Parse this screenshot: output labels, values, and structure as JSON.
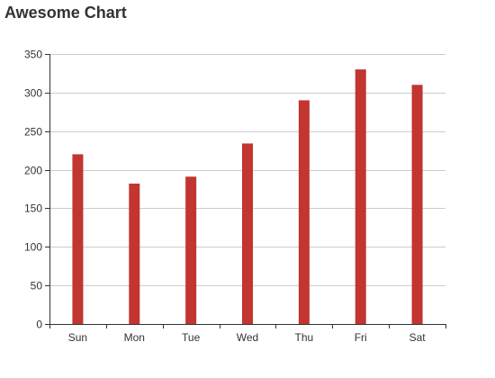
{
  "chart_data": {
    "type": "bar",
    "title": "Awesome Chart",
    "categories": [
      "Sun",
      "Mon",
      "Tue",
      "Wed",
      "Thu",
      "Fri",
      "Sat"
    ],
    "values": [
      220,
      182,
      191,
      234,
      290,
      330,
      310
    ],
    "ylim": [
      0,
      350
    ],
    "yticks": [
      0,
      50,
      100,
      150,
      200,
      250,
      300,
      350
    ],
    "grid": true,
    "legend": "none",
    "bar_color": "#c23531"
  }
}
